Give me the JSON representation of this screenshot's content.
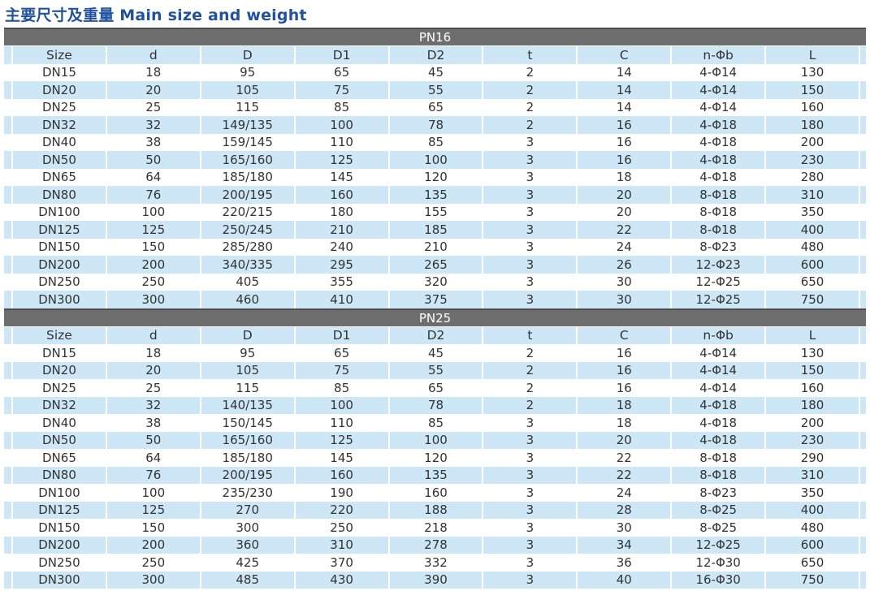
{
  "page_title": "主要尺寸及重量 Main size and weight",
  "colors": {
    "title": "#21519f",
    "band_bg": "#6e6e6e",
    "band_edge": "#4b4b4b",
    "band_text": "#ffffff",
    "row_alt": "#cde7f6",
    "text": "#333333"
  },
  "table": {
    "columns": [
      "Size",
      "d",
      "D",
      "D1",
      "D2",
      "t",
      "C",
      "n-Φb",
      "L"
    ],
    "sections": [
      {
        "name": "PN16",
        "rows": [
          [
            "DN15",
            "18",
            "95",
            "65",
            "45",
            "2",
            "14",
            "4-Φ14",
            "130"
          ],
          [
            "DN20",
            "20",
            "105",
            "75",
            "55",
            "2",
            "14",
            "4-Φ14",
            "150"
          ],
          [
            "DN25",
            "25",
            "115",
            "85",
            "65",
            "2",
            "14",
            "4-Φ14",
            "160"
          ],
          [
            "DN32",
            "32",
            "149/135",
            "100",
            "78",
            "2",
            "16",
            "4-Φ18",
            "180"
          ],
          [
            "DN40",
            "38",
            "159/145",
            "110",
            "85",
            "3",
            "16",
            "4-Φ18",
            "200"
          ],
          [
            "DN50",
            "50",
            "165/160",
            "125",
            "100",
            "3",
            "16",
            "4-Φ18",
            "230"
          ],
          [
            "DN65",
            "64",
            "185/180",
            "145",
            "120",
            "3",
            "18",
            "4-Φ18",
            "280"
          ],
          [
            "DN80",
            "76",
            "200/195",
            "160",
            "135",
            "3",
            "20",
            "8-Φ18",
            "310"
          ],
          [
            "DN100",
            "100",
            "220/215",
            "180",
            "155",
            "3",
            "20",
            "8-Φ18",
            "350"
          ],
          [
            "DN125",
            "125",
            "250/245",
            "210",
            "185",
            "3",
            "22",
            "8-Φ18",
            "400"
          ],
          [
            "DN150",
            "150",
            "285/280",
            "240",
            "210",
            "3",
            "24",
            "8-Φ23",
            "480"
          ],
          [
            "DN200",
            "200",
            "340/335",
            "295",
            "265",
            "3",
            "26",
            "12-Φ23",
            "600"
          ],
          [
            "DN250",
            "250",
            "405",
            "355",
            "320",
            "3",
            "30",
            "12-Φ25",
            "650"
          ],
          [
            "DN300",
            "300",
            "460",
            "410",
            "375",
            "3",
            "30",
            "12-Φ25",
            "750"
          ]
        ]
      },
      {
        "name": "PN25",
        "rows": [
          [
            "DN15",
            "18",
            "95",
            "65",
            "45",
            "2",
            "16",
            "4-Φ14",
            "130"
          ],
          [
            "DN20",
            "20",
            "105",
            "75",
            "55",
            "2",
            "16",
            "4-Φ14",
            "150"
          ],
          [
            "DN25",
            "25",
            "115",
            "85",
            "65",
            "2",
            "16",
            "4-Φ14",
            "160"
          ],
          [
            "DN32",
            "32",
            "140/135",
            "100",
            "78",
            "2",
            "18",
            "4-Φ18",
            "180"
          ],
          [
            "DN40",
            "38",
            "150/145",
            "110",
            "85",
            "3",
            "18",
            "4-Φ18",
            "200"
          ],
          [
            "DN50",
            "50",
            "165/160",
            "125",
            "100",
            "3",
            "20",
            "4-Φ18",
            "230"
          ],
          [
            "DN65",
            "64",
            "185/180",
            "145",
            "120",
            "3",
            "22",
            "8-Φ18",
            "290"
          ],
          [
            "DN80",
            "76",
            "200/195",
            "160",
            "135",
            "3",
            "22",
            "8-Φ18",
            "310"
          ],
          [
            "DN100",
            "100",
            "235/230",
            "190",
            "160",
            "3",
            "24",
            "8-Φ23",
            "350"
          ],
          [
            "DN125",
            "125",
            "270",
            "220",
            "188",
            "3",
            "28",
            "8-Φ25",
            "400"
          ],
          [
            "DN150",
            "150",
            "300",
            "250",
            "218",
            "3",
            "30",
            "8-Φ25",
            "480"
          ],
          [
            "DN200",
            "200",
            "360",
            "310",
            "278",
            "3",
            "34",
            "12-Φ25",
            "600"
          ],
          [
            "DN250",
            "250",
            "425",
            "370",
            "332",
            "3",
            "36",
            "12-Φ30",
            "650"
          ],
          [
            "DN300",
            "300",
            "485",
            "430",
            "390",
            "3",
            "40",
            "16-Φ30",
            "750"
          ]
        ]
      }
    ]
  }
}
